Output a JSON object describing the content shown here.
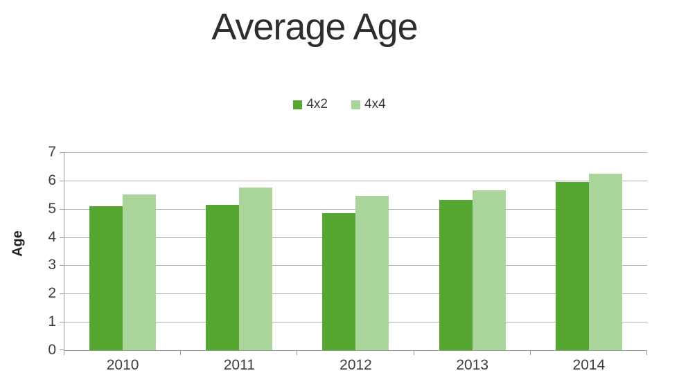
{
  "chart_data": {
    "type": "bar",
    "title": "Average Age",
    "ylabel": "Age",
    "xlabel": "",
    "categories": [
      "2010",
      "2011",
      "2012",
      "2013",
      "2014"
    ],
    "series": [
      {
        "name": "4x2",
        "color": "#56A731",
        "values": [
          5.1,
          5.15,
          4.85,
          5.3,
          5.95
        ]
      },
      {
        "name": "4x4",
        "color": "#A9D59B",
        "values": [
          5.5,
          5.75,
          5.45,
          5.65,
          6.25
        ]
      }
    ],
    "ylim": [
      0,
      7
    ],
    "yticks": [
      0,
      1,
      2,
      3,
      4,
      5,
      6,
      7
    ],
    "grid": true,
    "legend_position": "top-center"
  },
  "colors": {
    "grid": "#aeaeae",
    "axis": "#9a9a9a",
    "text": "#3d3d3d",
    "title": "#2d2d2d"
  }
}
